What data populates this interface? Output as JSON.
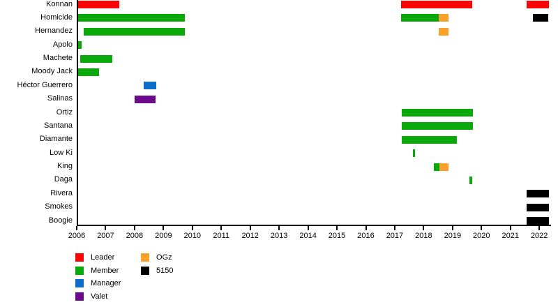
{
  "chart_data": {
    "type": "bar",
    "variant": "horizontal-timeline-gantt",
    "title": "",
    "xlabel": "",
    "ylabel": "",
    "grid": false,
    "legend_position": "bottom-left",
    "x_axis": {
      "start": 2006,
      "end": 2022,
      "tick_step": 1,
      "tick_labels": [
        "2006",
        "2007",
        "2008",
        "2009",
        "2010",
        "2011",
        "2012",
        "2013",
        "2014",
        "2015",
        "2016",
        "2017",
        "2018",
        "2019",
        "2020",
        "2021",
        "2022"
      ],
      "plot_end": 2022.4
    },
    "rows": [
      {
        "label": "Konnan",
        "bars": [
          {
            "start": 2006.0,
            "end": 2007.47,
            "role": "Leader"
          },
          {
            "start": 2017.2,
            "end": 2019.66,
            "role": "Leader"
          },
          {
            "start": 2021.54,
            "end": 2022.32,
            "role": "Leader"
          }
        ]
      },
      {
        "label": "Homicide",
        "bars": [
          {
            "start": 2006.0,
            "end": 2009.72,
            "role": "Member"
          },
          {
            "start": 2017.2,
            "end": 2018.52,
            "role": "Member"
          },
          {
            "start": 2018.52,
            "end": 2018.84,
            "role": "OGz"
          },
          {
            "start": 2021.76,
            "end": 2022.3,
            "role": "5150"
          }
        ]
      },
      {
        "label": "Hernandez",
        "bars": [
          {
            "start": 2006.24,
            "end": 2009.72,
            "role": "Member"
          },
          {
            "start": 2018.52,
            "end": 2018.84,
            "role": "OGz"
          }
        ]
      },
      {
        "label": "Apolo",
        "bars": [
          {
            "start": 2006.0,
            "end": 2006.15,
            "role": "Member"
          }
        ]
      },
      {
        "label": "Machete",
        "bars": [
          {
            "start": 2006.1,
            "end": 2007.23,
            "role": "Member"
          }
        ]
      },
      {
        "label": "Moody Jack",
        "bars": [
          {
            "start": 2006.02,
            "end": 2006.77,
            "role": "Member"
          }
        ]
      },
      {
        "label": "Héctor Guerrero",
        "bars": [
          {
            "start": 2008.3,
            "end": 2008.75,
            "role": "Manager"
          }
        ]
      },
      {
        "label": "Salinas",
        "bars": [
          {
            "start": 2008.0,
            "end": 2008.72,
            "role": "Valet"
          }
        ]
      },
      {
        "label": "Ortiz",
        "bars": [
          {
            "start": 2017.22,
            "end": 2019.69,
            "role": "Member"
          }
        ]
      },
      {
        "label": "Santana",
        "bars": [
          {
            "start": 2017.22,
            "end": 2019.69,
            "role": "Member"
          }
        ]
      },
      {
        "label": "Diamante",
        "bars": [
          {
            "start": 2017.22,
            "end": 2019.13,
            "role": "Member"
          }
        ]
      },
      {
        "label": "Low Ki",
        "bars": [
          {
            "start": 2017.61,
            "end": 2017.69,
            "role": "Member"
          }
        ]
      },
      {
        "label": "King",
        "bars": [
          {
            "start": 2018.34,
            "end": 2018.54,
            "role": "Member"
          },
          {
            "start": 2018.54,
            "end": 2018.84,
            "role": "OGz"
          }
        ]
      },
      {
        "label": "Daga",
        "bars": [
          {
            "start": 2019.56,
            "end": 2019.67,
            "role": "Member"
          }
        ]
      },
      {
        "label": "Rivera",
        "bars": [
          {
            "start": 2021.54,
            "end": 2022.32,
            "role": "5150"
          }
        ]
      },
      {
        "label": "Smokes",
        "bars": [
          {
            "start": 2021.54,
            "end": 2022.32,
            "role": "5150"
          }
        ]
      },
      {
        "label": "Boogie",
        "bars": [
          {
            "start": 2021.54,
            "end": 2022.32,
            "role": "5150"
          }
        ]
      }
    ],
    "legend": [
      {
        "label": "Leader",
        "color": "#f90505"
      },
      {
        "label": "Member",
        "color": "#0aa80a"
      },
      {
        "label": "Manager",
        "color": "#0d6fc9"
      },
      {
        "label": "Valet",
        "color": "#6c0a8c"
      },
      {
        "label": "OGz",
        "color": "#f9a12b"
      },
      {
        "label": "5150",
        "color": "#000000"
      }
    ]
  }
}
